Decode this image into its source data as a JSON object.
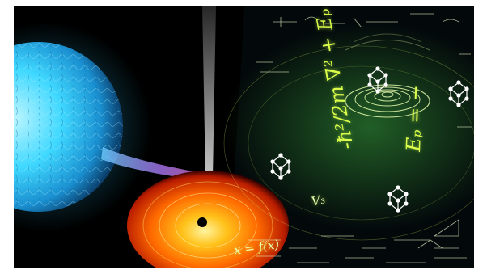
{
  "image": {
    "subject": "binary-star-black-hole-with-physics-equations",
    "colors": {
      "star": "#39d6ff",
      "accretion_disk": "#ff7a00",
      "equations": "#dcff4a",
      "background": "#000000"
    }
  },
  "equations": {
    "hamiltonian": "-ħ²/2m ∇² + Eₚ",
    "energy": "Eₚ = −",
    "potential": "V₃",
    "fx": "x = f(x)"
  }
}
